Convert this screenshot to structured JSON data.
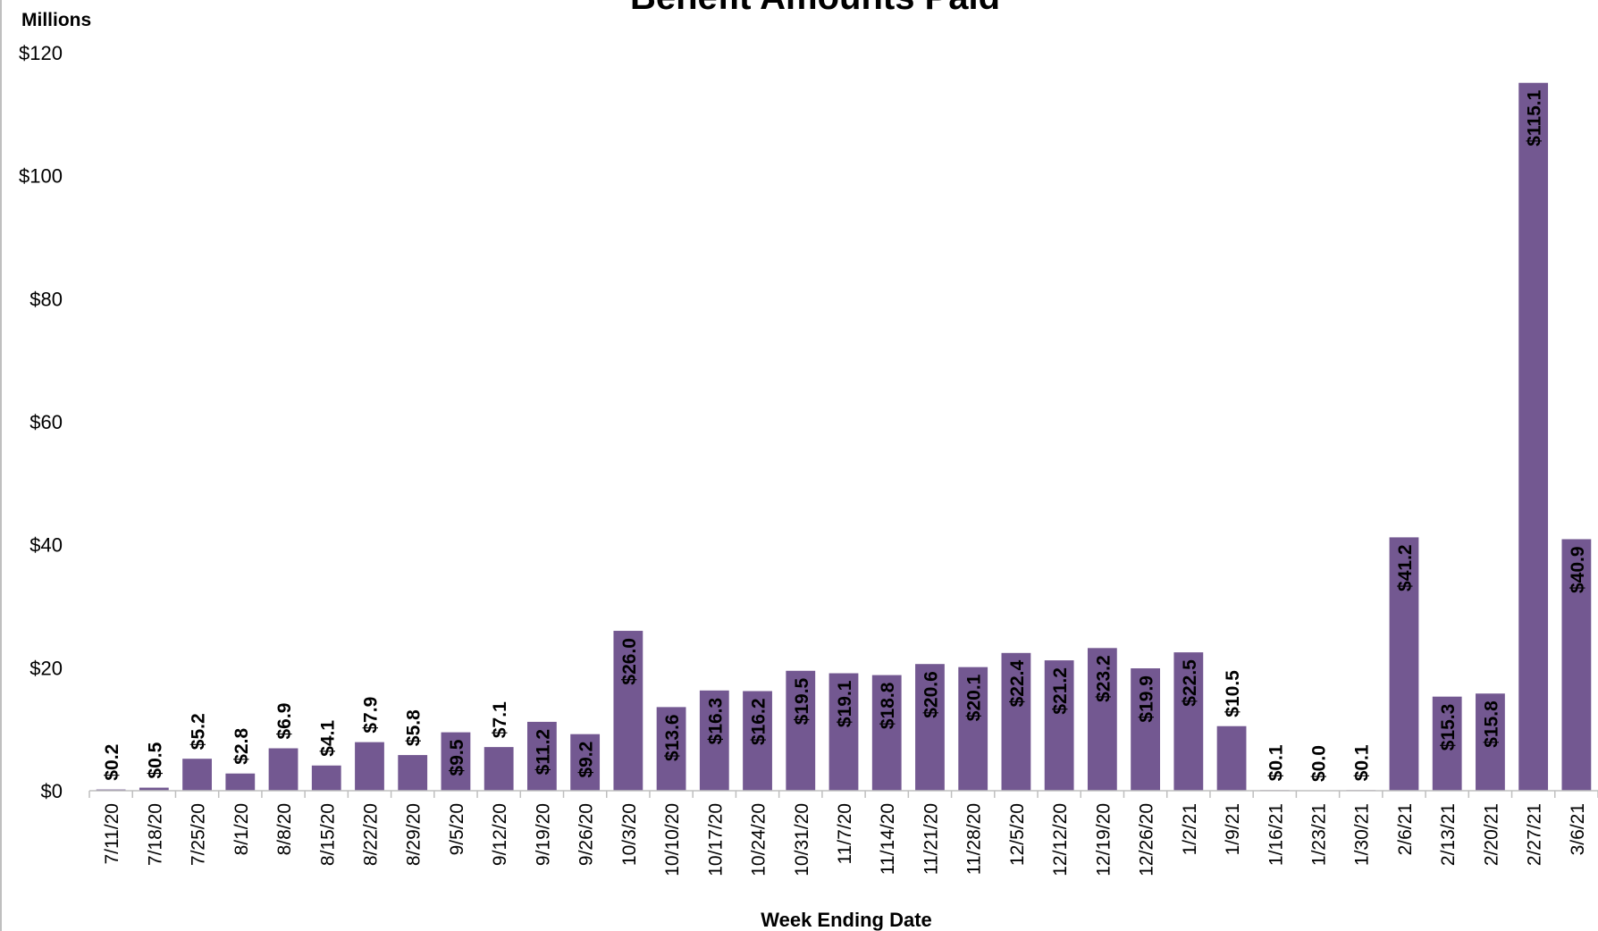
{
  "chart_data": {
    "type": "bar",
    "title": "Benefit Amounts Paid",
    "xlabel": "Week Ending Date",
    "ylabel": "Millions",
    "ylim": [
      0,
      120
    ],
    "yticks": [
      "$0",
      "$20",
      "$40",
      "$60",
      "$80",
      "$100",
      "$120"
    ],
    "ytick_values": [
      0,
      20,
      40,
      60,
      80,
      100,
      120
    ],
    "grid": false,
    "legend": "none",
    "bar_color": "#735891",
    "categories": [
      "7/11/20",
      "7/18/20",
      "7/25/20",
      "8/1/20",
      "8/8/20",
      "8/15/20",
      "8/22/20",
      "8/29/20",
      "9/5/20",
      "9/12/20",
      "9/19/20",
      "9/26/20",
      "10/3/20",
      "10/10/20",
      "10/17/20",
      "10/24/20",
      "10/31/20",
      "11/7/20",
      "11/14/20",
      "11/21/20",
      "11/28/20",
      "12/5/20",
      "12/12/20",
      "12/19/20",
      "12/26/20",
      "1/2/21",
      "1/9/21",
      "1/16/21",
      "1/23/21",
      "1/30/21",
      "2/6/21",
      "2/13/21",
      "2/20/21",
      "2/27/21",
      "3/6/21"
    ],
    "values": [
      0.2,
      0.5,
      5.2,
      2.8,
      6.9,
      4.1,
      7.9,
      5.8,
      9.5,
      7.1,
      11.2,
      9.2,
      26.0,
      13.6,
      16.3,
      16.2,
      19.5,
      19.1,
      18.8,
      20.6,
      20.1,
      22.4,
      21.2,
      23.2,
      19.9,
      22.5,
      10.5,
      0.1,
      0.0,
      0.1,
      41.2,
      15.3,
      15.8,
      115.1,
      40.9
    ],
    "data_labels": [
      "$0.2",
      "$0.5",
      "$5.2",
      "$2.8",
      "$6.9",
      "$4.1",
      "$7.9",
      "$5.8",
      "$9.5",
      "$7.1",
      "$11.2",
      "$9.2",
      "$26.0",
      "$13.6",
      "$16.3",
      "$16.2",
      "$19.5",
      "$19.1",
      "$18.8",
      "$20.6",
      "$20.1",
      "$22.4",
      "$21.2",
      "$23.2",
      "$19.9",
      "$22.5",
      "$10.5",
      "$0.1",
      "$0.0",
      "$0.1",
      "$41.2",
      "$15.3",
      "$15.8",
      "$115.1",
      "$40.9"
    ]
  }
}
